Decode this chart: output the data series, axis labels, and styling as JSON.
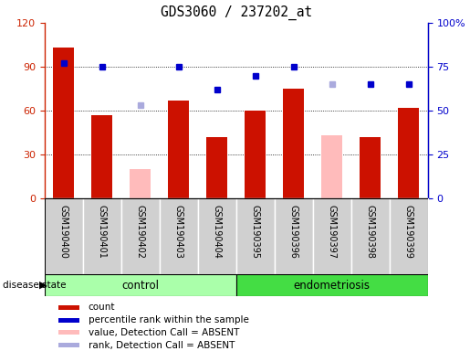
{
  "title": "GDS3060 / 237202_at",
  "samples": [
    "GSM190400",
    "GSM190401",
    "GSM190402",
    "GSM190403",
    "GSM190404",
    "GSM190395",
    "GSM190396",
    "GSM190397",
    "GSM190398",
    "GSM190399"
  ],
  "bar_values": [
    103,
    57,
    null,
    67,
    42,
    60,
    75,
    null,
    42,
    62
  ],
  "bar_absent_values": [
    null,
    null,
    20,
    null,
    null,
    null,
    null,
    43,
    null,
    null
  ],
  "bar_color_present": "#cc1100",
  "bar_color_absent": "#ffbbbb",
  "dot_values": [
    77,
    75,
    null,
    75,
    62,
    70,
    75,
    null,
    65,
    65
  ],
  "dot_absent_values": [
    null,
    null,
    53,
    null,
    null,
    null,
    null,
    65,
    null,
    null
  ],
  "dot_color_present": "#0000cc",
  "dot_color_absent": "#aaaadd",
  "ylim_left": [
    0,
    120
  ],
  "ylim_right": [
    0,
    100
  ],
  "yticks_left": [
    0,
    30,
    60,
    90,
    120
  ],
  "ytick_labels_left": [
    "0",
    "30",
    "60",
    "90",
    "120"
  ],
  "yticks_right": [
    0,
    25,
    50,
    75,
    100
  ],
  "ytick_labels_right": [
    "0",
    "25",
    "50",
    "75",
    "100%"
  ],
  "control_color": "#aaffaa",
  "endometriosis_color": "#44dd44",
  "sample_box_color": "#d0d0d0",
  "legend_items": [
    {
      "label": "count",
      "color": "#cc1100"
    },
    {
      "label": "percentile rank within the sample",
      "color": "#0000cc"
    },
    {
      "label": "value, Detection Call = ABSENT",
      "color": "#ffbbbb"
    },
    {
      "label": "rank, Detection Call = ABSENT",
      "color": "#aaaadd"
    }
  ],
  "disease_state_label": "disease state",
  "control_label": "control",
  "endometriosis_label": "endometriosis",
  "n_control": 5,
  "n_endometriosis": 5
}
